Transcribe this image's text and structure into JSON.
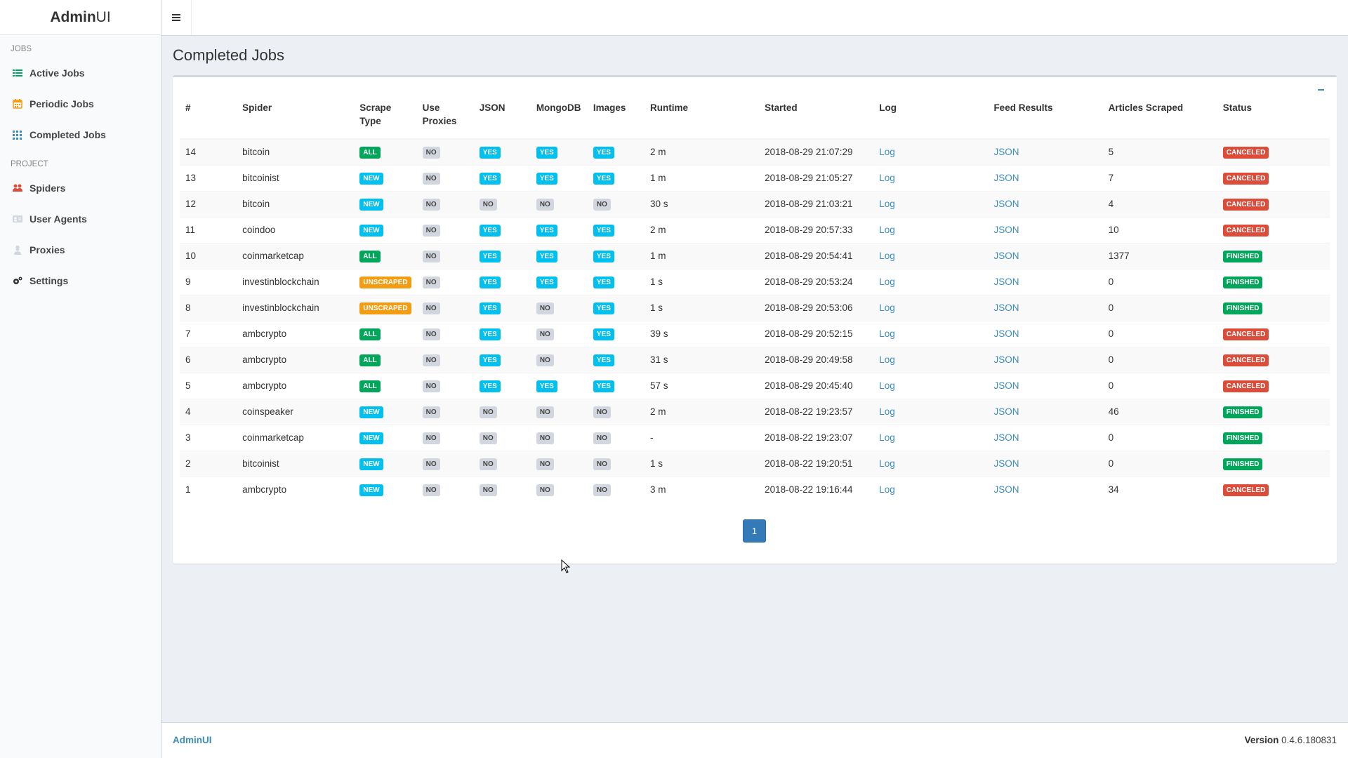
{
  "app": {
    "logo_bold": "Admin",
    "logo_light": "UI"
  },
  "sidebar": {
    "header_jobs": "JOBS",
    "header_project": "PROJECT",
    "items": [
      {
        "label": "Active Jobs",
        "icon": "list-icon"
      },
      {
        "label": "Periodic Jobs",
        "icon": "calendar-icon"
      },
      {
        "label": "Completed Jobs",
        "icon": "grid-icon"
      },
      {
        "label": "Spiders",
        "icon": "users-icon"
      },
      {
        "label": "User Agents",
        "icon": "id-card-icon"
      },
      {
        "label": "Proxies",
        "icon": "user-secret-icon"
      },
      {
        "label": "Settings",
        "icon": "gears-icon"
      }
    ]
  },
  "page": {
    "title": "Completed Jobs"
  },
  "table": {
    "headers": [
      "#",
      "Spider",
      "Scrape Type",
      "Use Proxies",
      "JSON",
      "MongoDB",
      "Images",
      "Runtime",
      "Started",
      "Log",
      "Feed Results",
      "Articles Scraped",
      "Status"
    ],
    "rows": [
      {
        "id": "14",
        "spider": "bitcoin",
        "type": "ALL",
        "proxies": "NO",
        "json": "YES",
        "mongo": "YES",
        "images": "YES",
        "runtime": "2 m",
        "started": "2018-08-29 21:07:29",
        "log": "Log",
        "feed": "JSON",
        "articles": "5",
        "status": "CANCELED"
      },
      {
        "id": "13",
        "spider": "bitcoinist",
        "type": "NEW",
        "proxies": "NO",
        "json": "YES",
        "mongo": "YES",
        "images": "YES",
        "runtime": "1 m",
        "started": "2018-08-29 21:05:27",
        "log": "Log",
        "feed": "JSON",
        "articles": "7",
        "status": "CANCELED"
      },
      {
        "id": "12",
        "spider": "bitcoin",
        "type": "NEW",
        "proxies": "NO",
        "json": "NO",
        "mongo": "NO",
        "images": "NO",
        "runtime": "30 s",
        "started": "2018-08-29 21:03:21",
        "log": "Log",
        "feed": "JSON",
        "articles": "4",
        "status": "CANCELED"
      },
      {
        "id": "11",
        "spider": "coindoo",
        "type": "NEW",
        "proxies": "NO",
        "json": "YES",
        "mongo": "YES",
        "images": "YES",
        "runtime": "2 m",
        "started": "2018-08-29 20:57:33",
        "log": "Log",
        "feed": "JSON",
        "articles": "10",
        "status": "CANCELED"
      },
      {
        "id": "10",
        "spider": "coinmarketcap",
        "type": "ALL",
        "proxies": "NO",
        "json": "YES",
        "mongo": "YES",
        "images": "YES",
        "runtime": "1 m",
        "started": "2018-08-29 20:54:41",
        "log": "Log",
        "feed": "JSON",
        "articles": "1377",
        "status": "FINISHED"
      },
      {
        "id": "9",
        "spider": "investinblockchain",
        "type": "UNSCRAPED",
        "proxies": "NO",
        "json": "YES",
        "mongo": "YES",
        "images": "YES",
        "runtime": "1 s",
        "started": "2018-08-29 20:53:24",
        "log": "Log",
        "feed": "JSON",
        "articles": "0",
        "status": "FINISHED"
      },
      {
        "id": "8",
        "spider": "investinblockchain",
        "type": "UNSCRAPED",
        "proxies": "NO",
        "json": "YES",
        "mongo": "NO",
        "images": "YES",
        "runtime": "1 s",
        "started": "2018-08-29 20:53:06",
        "log": "Log",
        "feed": "JSON",
        "articles": "0",
        "status": "FINISHED"
      },
      {
        "id": "7",
        "spider": "ambcrypto",
        "type": "ALL",
        "proxies": "NO",
        "json": "YES",
        "mongo": "NO",
        "images": "YES",
        "runtime": "39 s",
        "started": "2018-08-29 20:52:15",
        "log": "Log",
        "feed": "JSON",
        "articles": "0",
        "status": "CANCELED"
      },
      {
        "id": "6",
        "spider": "ambcrypto",
        "type": "ALL",
        "proxies": "NO",
        "json": "YES",
        "mongo": "NO",
        "images": "YES",
        "runtime": "31 s",
        "started": "2018-08-29 20:49:58",
        "log": "Log",
        "feed": "JSON",
        "articles": "0",
        "status": "CANCELED"
      },
      {
        "id": "5",
        "spider": "ambcrypto",
        "type": "ALL",
        "proxies": "NO",
        "json": "YES",
        "mongo": "YES",
        "images": "YES",
        "runtime": "57 s",
        "started": "2018-08-29 20:45:40",
        "log": "Log",
        "feed": "JSON",
        "articles": "0",
        "status": "CANCELED"
      },
      {
        "id": "4",
        "spider": "coinspeaker",
        "type": "NEW",
        "proxies": "NO",
        "json": "NO",
        "mongo": "NO",
        "images": "NO",
        "runtime": "2 m",
        "started": "2018-08-22 19:23:57",
        "log": "Log",
        "feed": "JSON",
        "articles": "46",
        "status": "FINISHED"
      },
      {
        "id": "3",
        "spider": "coinmarketcap",
        "type": "NEW",
        "proxies": "NO",
        "json": "NO",
        "mongo": "NO",
        "images": "NO",
        "runtime": "-",
        "started": "2018-08-22 19:23:07",
        "log": "Log",
        "feed": "JSON",
        "articles": "0",
        "status": "FINISHED"
      },
      {
        "id": "2",
        "spider": "bitcoinist",
        "type": "NEW",
        "proxies": "NO",
        "json": "NO",
        "mongo": "NO",
        "images": "NO",
        "runtime": "1 s",
        "started": "2018-08-22 19:20:51",
        "log": "Log",
        "feed": "JSON",
        "articles": "0",
        "status": "FINISHED"
      },
      {
        "id": "1",
        "spider": "ambcrypto",
        "type": "NEW",
        "proxies": "NO",
        "json": "NO",
        "mongo": "NO",
        "images": "NO",
        "runtime": "3 m",
        "started": "2018-08-22 19:16:44",
        "log": "Log",
        "feed": "JSON",
        "articles": "34",
        "status": "CANCELED"
      }
    ]
  },
  "pagination": {
    "current": "1"
  },
  "footer": {
    "brand": "AdminUI",
    "version_label": "Version",
    "version_value": "0.4.6.180831"
  },
  "colors": {
    "primary": "#3c8dbc",
    "success": "#00a65a",
    "info": "#00c0ef",
    "warning": "#f39c12",
    "danger": "#dd4b39",
    "muted": "#d2d6de"
  }
}
